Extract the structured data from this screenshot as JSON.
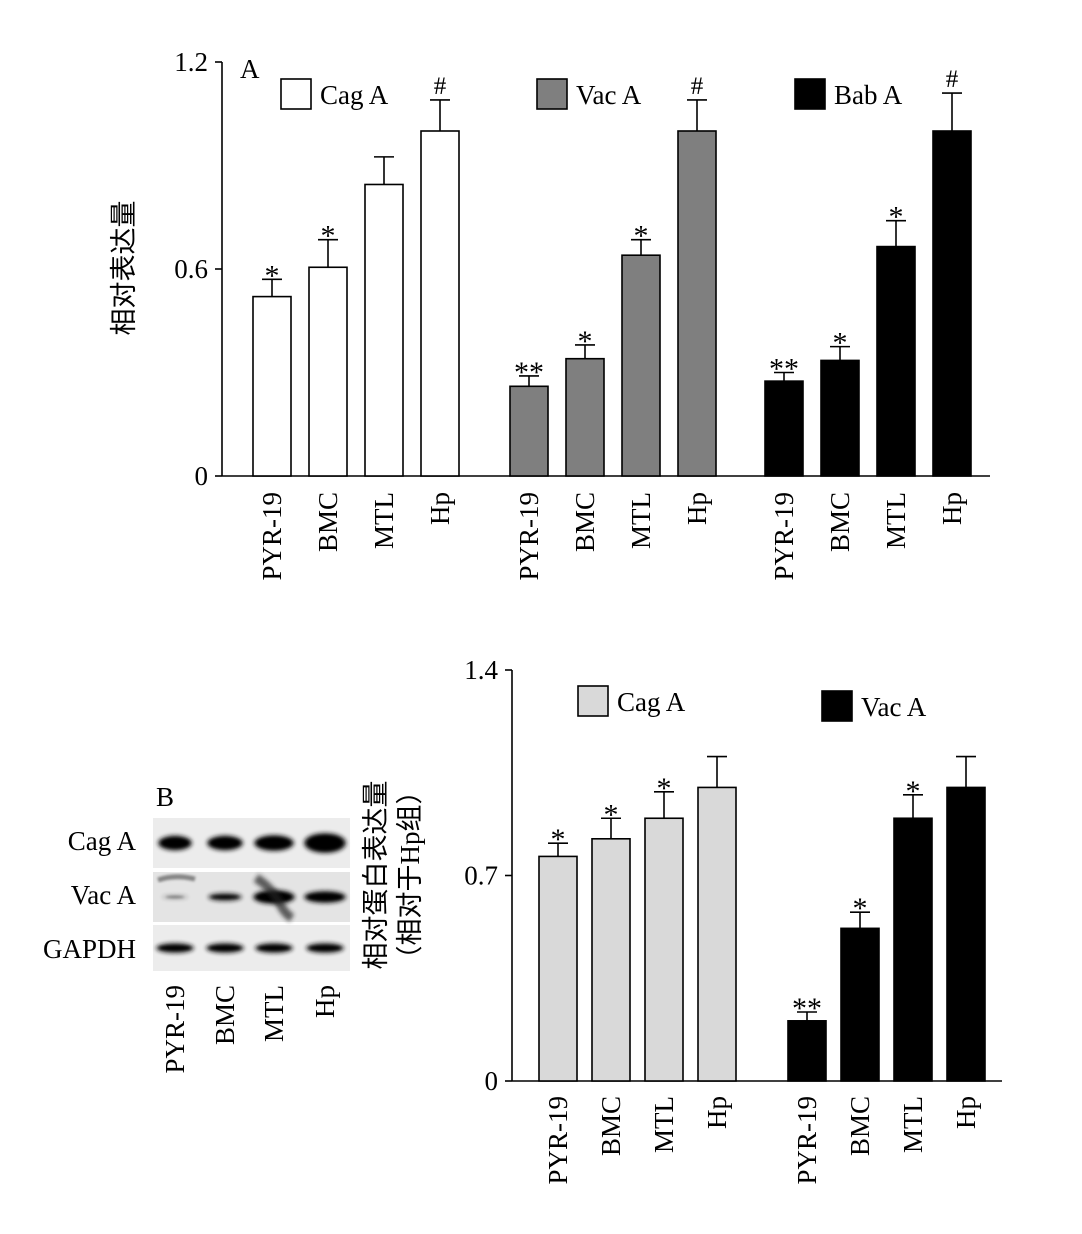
{
  "colors": {
    "cag_a_panel_a": "#ffffff",
    "vac_a_panel_a": "#7f7f7f",
    "bab_a_panel_a": "#000000",
    "cag_a_panel_b": "#d9d9d9",
    "vac_a_panel_b": "#000000",
    "axis": "#000000"
  },
  "chart_data": [
    {
      "panel_label": "A",
      "type": "bar",
      "ylabel": "相对表达量",
      "ylim": [
        0,
        1.2
      ],
      "yticks": [
        "0",
        "0.6",
        "1.2"
      ],
      "categories": [
        "PYR-19",
        "BMC",
        "MTL",
        "Hp"
      ],
      "legend_placement": "top",
      "series": [
        {
          "name": "Cag A",
          "color": "#ffffff",
          "values": [
            0.52,
            0.605,
            0.845,
            1.0
          ],
          "errors": [
            0.05,
            0.08,
            0.08,
            0.09
          ],
          "marks": [
            "*",
            "*",
            "",
            "#"
          ]
        },
        {
          "name": "Vac A",
          "color": "#7f7f7f",
          "values": [
            0.26,
            0.34,
            0.64,
            1.0
          ],
          "errors": [
            0.03,
            0.04,
            0.045,
            0.09
          ],
          "marks": [
            "**",
            "*",
            "*",
            "#"
          ]
        },
        {
          "name": "Bab A",
          "color": "#000000",
          "values": [
            0.275,
            0.335,
            0.665,
            1.0
          ],
          "errors": [
            0.025,
            0.04,
            0.075,
            0.11
          ],
          "marks": [
            "**",
            "*",
            "*",
            "#"
          ]
        }
      ]
    },
    {
      "panel_label": "",
      "type": "bar",
      "ylabel": "相对蛋白表达量",
      "ylabel2": "（相对于Hp组）",
      "ylim": [
        0,
        1.4
      ],
      "yticks": [
        "0",
        "0.7",
        "1.4"
      ],
      "categories": [
        "PYR-19",
        "BMC",
        "MTL",
        "Hp"
      ],
      "legend_placement": "top",
      "series": [
        {
          "name": "Cag A",
          "color": "#d9d9d9",
          "values": [
            0.765,
            0.825,
            0.895,
            1.0
          ],
          "errors": [
            0.045,
            0.07,
            0.09,
            0.105
          ],
          "marks": [
            "*",
            "*",
            "*",
            ""
          ]
        },
        {
          "name": "Vac A",
          "color": "#000000",
          "values": [
            0.205,
            0.52,
            0.895,
            1.0
          ],
          "errors": [
            0.03,
            0.055,
            0.08,
            0.105
          ],
          "marks": [
            "**",
            "*",
            "*",
            ""
          ]
        }
      ]
    }
  ],
  "blot": {
    "panel_label": "B",
    "rows": [
      "Cag A",
      "Vac A",
      "GAPDH"
    ],
    "lanes": [
      "PYR-19",
      "BMC",
      "MTL",
      "Hp"
    ]
  }
}
